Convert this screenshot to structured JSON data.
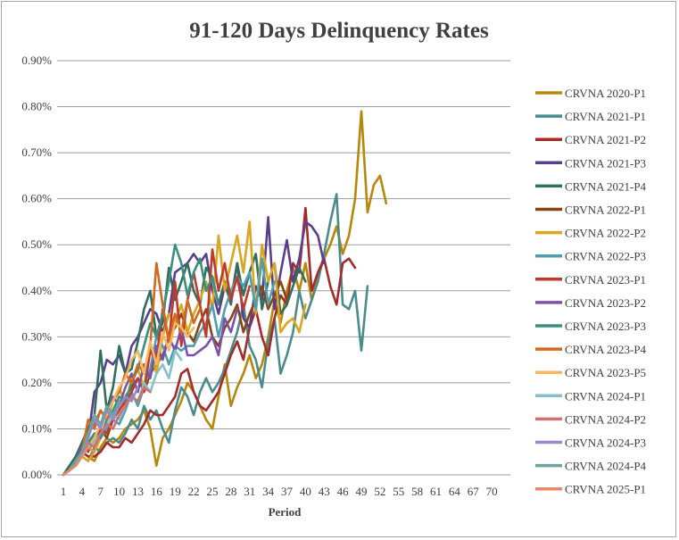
{
  "chart_data": {
    "type": "line",
    "title": "91-120 Days Delinquency Rates",
    "xlabel": "Period",
    "ylabel": "",
    "x_ticks": [
      1,
      4,
      7,
      10,
      13,
      16,
      19,
      22,
      25,
      28,
      31,
      34,
      37,
      40,
      43,
      46,
      49,
      52,
      55,
      58,
      61,
      64,
      67,
      70
    ],
    "xlim": [
      0,
      73
    ],
    "y_ticks": [
      "0.00%",
      "0.10%",
      "0.20%",
      "0.30%",
      "0.40%",
      "0.50%",
      "0.60%",
      "0.70%",
      "0.80%",
      "0.90%"
    ],
    "ylim": [
      0,
      0.9
    ],
    "grid": "horizontal",
    "legend_position": "right",
    "series": [
      {
        "name": "CRVNA 2020-P1",
        "color": "#B8860B",
        "values": [
          0.0,
          0.01,
          0.03,
          0.05,
          0.04,
          0.03,
          0.06,
          0.08,
          0.07,
          0.08,
          0.1,
          0.11,
          0.12,
          0.14,
          0.1,
          0.02,
          0.08,
          0.1,
          0.13,
          0.16,
          0.2,
          0.18,
          0.15,
          0.12,
          0.1,
          0.17,
          0.24,
          0.15,
          0.19,
          0.22,
          0.26,
          0.21,
          0.24,
          0.3,
          0.38,
          0.33,
          0.4,
          0.45,
          0.4,
          0.46,
          0.38,
          0.43,
          0.47,
          0.5,
          0.54,
          0.48,
          0.52,
          0.6,
          0.79,
          0.57,
          0.63,
          0.65,
          0.59
        ]
      },
      {
        "name": "CRVNA 2021-P1",
        "color": "#4A8C8C",
        "values": [
          0.0,
          0.01,
          0.02,
          0.04,
          0.03,
          0.06,
          0.05,
          0.07,
          0.08,
          0.07,
          0.09,
          0.12,
          0.1,
          0.15,
          0.12,
          0.14,
          0.1,
          0.07,
          0.14,
          0.19,
          0.17,
          0.13,
          0.18,
          0.21,
          0.18,
          0.2,
          0.23,
          0.27,
          0.31,
          0.37,
          0.28,
          0.25,
          0.19,
          0.29,
          0.34,
          0.22,
          0.26,
          0.31,
          0.4,
          0.34,
          0.38,
          0.42,
          0.48,
          0.55,
          0.61,
          0.37,
          0.36,
          0.4,
          0.27,
          0.41
        ]
      },
      {
        "name": "CRVNA 2021-P2",
        "color": "#A52A2A",
        "values": [
          0.0,
          0.01,
          0.03,
          0.05,
          0.04,
          0.04,
          0.05,
          0.07,
          0.06,
          0.06,
          0.08,
          0.07,
          0.09,
          0.11,
          0.14,
          0.13,
          0.13,
          0.15,
          0.17,
          0.22,
          0.23,
          0.18,
          0.15,
          0.14,
          0.16,
          0.18,
          0.22,
          0.26,
          0.29,
          0.25,
          0.32,
          0.36,
          0.3,
          0.26,
          0.34,
          0.39,
          0.37,
          0.46,
          0.44,
          0.58,
          0.4,
          0.44,
          0.47,
          0.41,
          0.37,
          0.46,
          0.47,
          0.45
        ]
      },
      {
        "name": "CRVNA 2021-P3",
        "color": "#5B3F8C",
        "values": [
          0.0,
          0.01,
          0.03,
          0.06,
          0.08,
          0.18,
          0.2,
          0.25,
          0.24,
          0.26,
          0.22,
          0.28,
          0.3,
          0.33,
          0.36,
          0.35,
          0.31,
          0.35,
          0.44,
          0.45,
          0.46,
          0.48,
          0.46,
          0.48,
          0.4,
          0.35,
          0.41,
          0.38,
          0.46,
          0.34,
          0.32,
          0.41,
          0.38,
          0.56,
          0.36,
          0.44,
          0.51,
          0.42,
          0.47,
          0.55,
          0.54,
          0.52,
          0.46
        ]
      },
      {
        "name": "CRVNA 2021-P4",
        "color": "#2F6F5F",
        "values": [
          0.0,
          0.02,
          0.04,
          0.07,
          0.1,
          0.13,
          0.27,
          0.14,
          0.19,
          0.28,
          0.22,
          0.23,
          0.29,
          0.36,
          0.4,
          0.3,
          0.33,
          0.45,
          0.38,
          0.42,
          0.46,
          0.4,
          0.37,
          0.45,
          0.43,
          0.37,
          0.42,
          0.37,
          0.46,
          0.39,
          0.44,
          0.48,
          0.36,
          0.42,
          0.46,
          0.35,
          0.37,
          0.41,
          0.45,
          0.42
        ]
      },
      {
        "name": "CRVNA 2022-P1",
        "color": "#8B4513",
        "values": [
          0.0,
          0.01,
          0.03,
          0.05,
          0.07,
          0.06,
          0.1,
          0.08,
          0.12,
          0.15,
          0.17,
          0.19,
          0.21,
          0.18,
          0.22,
          0.24,
          0.26,
          0.3,
          0.32,
          0.35,
          0.31,
          0.29,
          0.33,
          0.36,
          0.3,
          0.28,
          0.32,
          0.34,
          0.37,
          0.31,
          0.35,
          0.38,
          0.41,
          0.36,
          0.39,
          0.42,
          0.38
        ]
      },
      {
        "name": "CRVNA 2022-P2",
        "color": "#DAA520",
        "values": [
          0.0,
          0.01,
          0.02,
          0.04,
          0.03,
          0.05,
          0.08,
          0.12,
          0.16,
          0.19,
          0.15,
          0.21,
          0.23,
          0.19,
          0.28,
          0.22,
          0.3,
          0.35,
          0.33,
          0.37,
          0.31,
          0.35,
          0.38,
          0.42,
          0.36,
          0.52,
          0.4,
          0.46,
          0.52,
          0.44,
          0.55,
          0.35,
          0.5,
          0.42,
          0.46,
          0.31,
          0.33,
          0.34,
          0.31,
          0.37
        ]
      },
      {
        "name": "CRVNA 2022-P3",
        "color": "#4F9FAF",
        "values": [
          0.0,
          0.01,
          0.02,
          0.04,
          0.06,
          0.09,
          0.08,
          0.1,
          0.12,
          0.11,
          0.14,
          0.18,
          0.15,
          0.19,
          0.23,
          0.3,
          0.28,
          0.24,
          0.28,
          0.27,
          0.28,
          0.28,
          0.31,
          0.33,
          0.37,
          0.3,
          0.36,
          0.4,
          0.43,
          0.41,
          0.44,
          0.36,
          0.47,
          0.37,
          0.42
        ]
      },
      {
        "name": "CRVNA 2023-P1",
        "color": "#C0392B",
        "values": [
          0.0,
          0.01,
          0.03,
          0.06,
          0.05,
          0.08,
          0.1,
          0.09,
          0.12,
          0.14,
          0.16,
          0.18,
          0.21,
          0.18,
          0.27,
          0.25,
          0.36,
          0.29,
          0.42,
          0.28,
          0.38,
          0.44,
          0.37,
          0.3,
          0.49,
          0.4,
          0.46,
          0.38,
          0.43,
          0.36,
          0.41
        ]
      },
      {
        "name": "CRVNA 2023-P2",
        "color": "#7B52AB",
        "values": [
          0.0,
          0.01,
          0.03,
          0.06,
          0.09,
          0.11,
          0.14,
          0.12,
          0.17,
          0.15,
          0.19,
          0.22,
          0.18,
          0.24,
          0.21,
          0.28,
          0.25,
          0.3,
          0.27,
          0.32,
          0.26,
          0.26,
          0.27,
          0.28,
          0.3,
          0.26,
          0.34,
          0.31,
          0.36
        ]
      },
      {
        "name": "CRVNA 2023-P3",
        "color": "#3A8F7F",
        "values": [
          0.0,
          0.01,
          0.02,
          0.04,
          0.07,
          0.09,
          0.08,
          0.12,
          0.14,
          0.17,
          0.16,
          0.2,
          0.23,
          0.28,
          0.33,
          0.3,
          0.35,
          0.42,
          0.5,
          0.46,
          0.39,
          0.44,
          0.47,
          0.4,
          0.43,
          0.37
        ]
      },
      {
        "name": "CRVNA 2023-P4",
        "color": "#D2691E",
        "values": [
          0.0,
          0.01,
          0.03,
          0.05,
          0.12,
          0.1,
          0.14,
          0.12,
          0.16,
          0.18,
          0.22,
          0.2,
          0.24,
          0.22,
          0.28,
          0.46,
          0.37,
          0.29,
          0.35,
          0.31,
          0.38,
          0.33,
          0.36
        ]
      },
      {
        "name": "CRVNA 2023-P5",
        "color": "#F4B860",
        "values": [
          0.0,
          0.01,
          0.02,
          0.04,
          0.06,
          0.08,
          0.11,
          0.13,
          0.16,
          0.19,
          0.21,
          0.25,
          0.27,
          0.22,
          0.29,
          0.24,
          0.31,
          0.27,
          0.33,
          0.32,
          0.3,
          0.32
        ]
      },
      {
        "name": "CRVNA 2024-P1",
        "color": "#86C0C8",
        "values": [
          0.0,
          0.01,
          0.02,
          0.04,
          0.06,
          0.07,
          0.09,
          0.11,
          0.13,
          0.12,
          0.15,
          0.17,
          0.16,
          0.2,
          0.18,
          0.22,
          0.24,
          0.21,
          0.27,
          0.25
        ]
      },
      {
        "name": "CRVNA 2024-P2",
        "color": "#D07070",
        "values": [
          0.0,
          0.01,
          0.03,
          0.05,
          0.07,
          0.06,
          0.09,
          0.11,
          0.1,
          0.13,
          0.15,
          0.17,
          0.16,
          0.19,
          0.18
        ]
      },
      {
        "name": "CRVNA 2024-P3",
        "color": "#9B88C7",
        "values": [
          0.0,
          0.01,
          0.02,
          0.05,
          0.08,
          0.12,
          0.1,
          0.14,
          0.12,
          0.15,
          0.17,
          0.16,
          0.19
        ]
      },
      {
        "name": "CRVNA 2024-P4",
        "color": "#6BA3A0",
        "values": [
          0.0,
          0.01,
          0.03,
          0.05,
          0.09,
          0.13,
          0.11,
          0.15,
          0.13,
          0.16
        ]
      },
      {
        "name": "CRVNA 2025-P1",
        "color": "#E8896A",
        "values": [
          0.0,
          0.01,
          0.02,
          0.04,
          0.06,
          0.05
        ]
      }
    ]
  }
}
